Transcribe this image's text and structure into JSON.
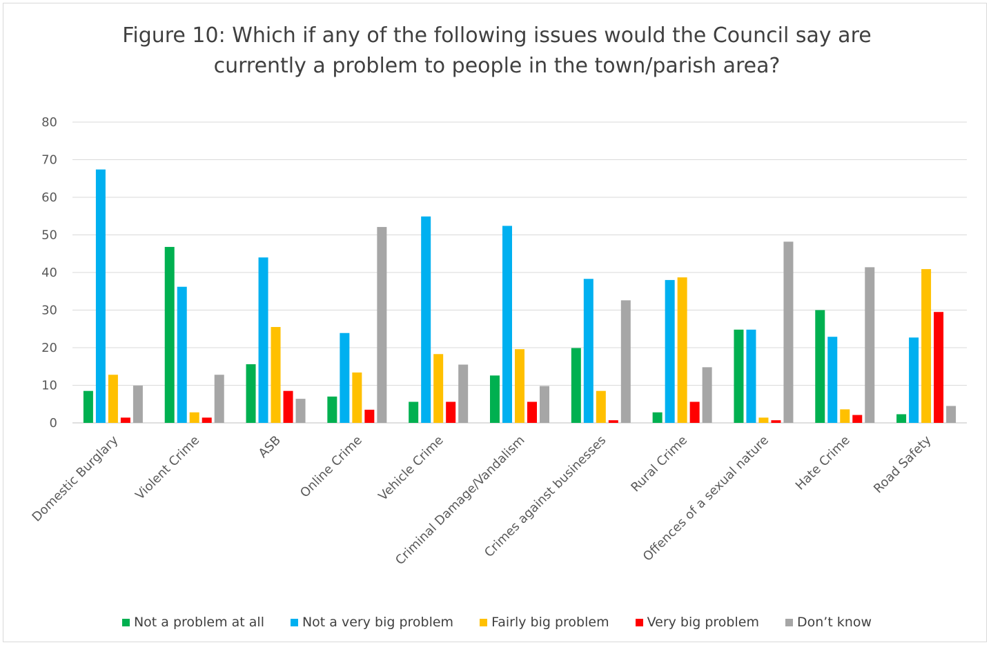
{
  "chart_data": {
    "type": "bar",
    "title_line1": "Figure 10: Which if any of the following issues would the Council say are",
    "title_line2": "currently a problem to people in the town/parish area?",
    "xlabel": "",
    "ylabel": "",
    "ylim": [
      0,
      80
    ],
    "yticks": [
      0,
      10,
      20,
      30,
      40,
      50,
      60,
      70,
      80
    ],
    "grid": true,
    "legend_position": "bottom",
    "categories": [
      "Domestic Burglary",
      "Violent Crime",
      "ASB",
      "Online Crime",
      "Vehicle Crime",
      "Criminal Damage/Vandalism",
      "Crimes against businesses",
      "Rural Crime",
      "Offences of a sexual nature",
      "Hate Crime",
      "Road Safety"
    ],
    "series": [
      {
        "name": "Not a problem at all",
        "color": "#00b050",
        "values": [
          8.5,
          46.8,
          15.6,
          7.0,
          5.6,
          12.6,
          19.9,
          2.8,
          24.8,
          30.0,
          2.3
        ]
      },
      {
        "name": "Not a very big problem",
        "color": "#00b0f0",
        "values": [
          67.4,
          36.2,
          44.0,
          23.9,
          54.9,
          52.4,
          38.3,
          38.0,
          24.8,
          22.9,
          22.7
        ]
      },
      {
        "name": "Fairly big problem",
        "color": "#ffc000",
        "values": [
          12.8,
          2.8,
          25.5,
          13.4,
          18.3,
          19.6,
          8.5,
          38.7,
          1.4,
          3.6,
          40.9
        ]
      },
      {
        "name": "Very big problem",
        "color": "#ff0000",
        "values": [
          1.4,
          1.4,
          8.5,
          3.5,
          5.6,
          5.6,
          0.7,
          5.6,
          0.7,
          2.1,
          29.5
        ]
      },
      {
        "name": "Don’t know",
        "color": "#a6a6a6",
        "values": [
          9.9,
          12.8,
          6.4,
          52.1,
          15.5,
          9.8,
          32.6,
          14.8,
          48.2,
          41.4,
          4.5
        ]
      }
    ]
  }
}
